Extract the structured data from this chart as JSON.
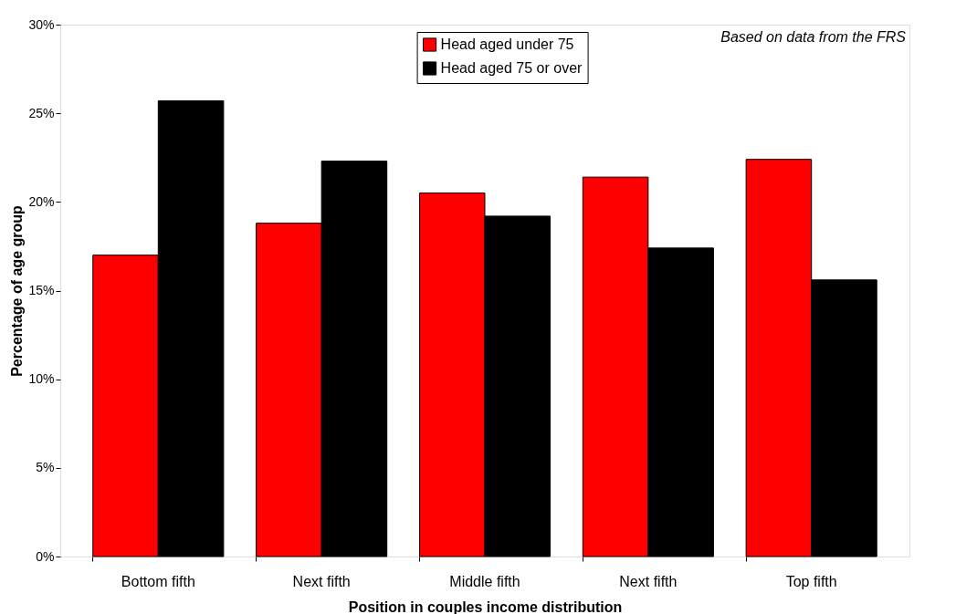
{
  "chart_data": {
    "type": "bar",
    "xlabel": "Position in couples income distribution",
    "ylabel": "Percentage of age group",
    "categories": [
      "Bottom fifth",
      "Next fifth",
      "Middle fifth",
      "Next fifth",
      "Top fifth"
    ],
    "series": [
      {
        "name": "Head aged under 75",
        "color": "#ff0000",
        "values": [
          17.0,
          18.8,
          20.5,
          21.4,
          22.4
        ]
      },
      {
        "name": "Head aged 75 or over",
        "color": "#000000",
        "values": [
          25.7,
          22.3,
          19.2,
          17.4,
          15.6
        ]
      }
    ],
    "ylim": [
      0,
      30
    ],
    "yticks": [
      {
        "value": 0,
        "label": "0%"
      },
      {
        "value": 5,
        "label": "5%"
      },
      {
        "value": 10,
        "label": "10%"
      },
      {
        "value": 15,
        "label": "15%"
      },
      {
        "value": 20,
        "label": "20%"
      },
      {
        "value": 25,
        "label": "25%"
      },
      {
        "value": 30,
        "label": "30%"
      }
    ],
    "grid": false,
    "legend": "top",
    "annotations": [
      "Based on data from the FRS"
    ]
  }
}
